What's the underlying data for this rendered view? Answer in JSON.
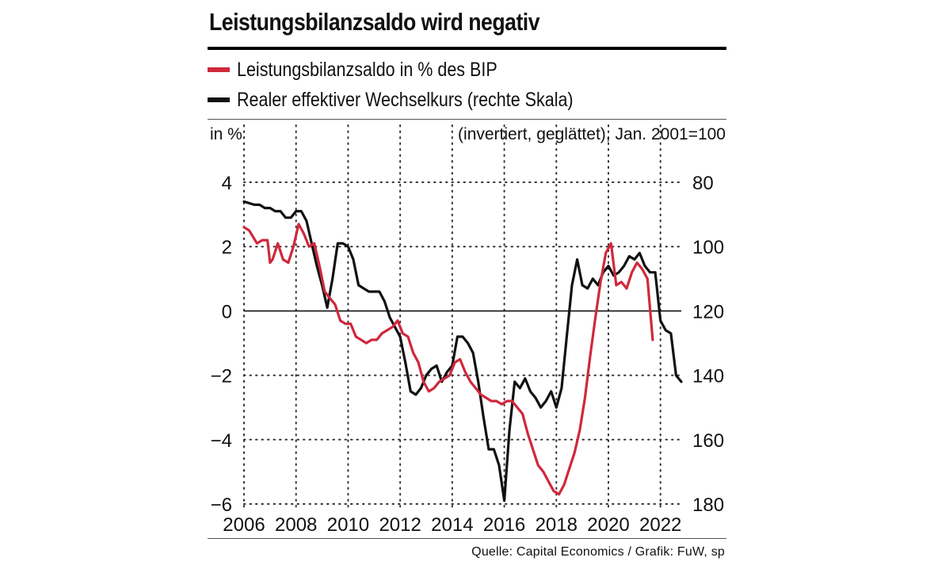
{
  "title": "Leistungsbilanzsaldo wird negativ",
  "legend": [
    {
      "label": "Leistungsbilanzsaldo in % des BIP",
      "color": "#d0283c"
    },
    {
      "label": "Realer effektiver Wechselkurs (rechte Skala)",
      "color": "#111111"
    }
  ],
  "source": "Quelle: Capital Economics / Grafik: FuW, sp",
  "chart_data": {
    "type": "line",
    "left_axis": {
      "unit_label": "in %",
      "ylim": [
        -6,
        4
      ],
      "ticks": [
        "4",
        "2",
        "0",
        "−2",
        "−4",
        "−6"
      ]
    },
    "right_axis": {
      "unit_label": "(invertiert, geglättet), Jan. 2001=100",
      "ylim": [
        180,
        80
      ],
      "inverted": true,
      "ticks": [
        "80",
        "100",
        "120",
        "140",
        "160",
        "180"
      ]
    },
    "x_axis": {
      "xlim": [
        2006,
        2022.8
      ],
      "ticks": [
        "2006",
        "2008",
        "2010",
        "2012",
        "2014",
        "2016",
        "2018",
        "2020",
        "2022"
      ]
    },
    "grid": true,
    "series": [
      {
        "name": "Leistungsbilanzsaldo in % des BIP",
        "axis": "left",
        "color": "#d0283c",
        "x": [
          2006.0,
          2006.2,
          2006.5,
          2006.7,
          2006.9,
          2007.0,
          2007.1,
          2007.3,
          2007.5,
          2007.7,
          2007.9,
          2008.1,
          2008.3,
          2008.5,
          2008.7,
          2008.9,
          2009.1,
          2009.3,
          2009.5,
          2009.7,
          2009.9,
          2010.1,
          2010.3,
          2010.5,
          2010.7,
          2010.9,
          2011.1,
          2011.3,
          2011.5,
          2011.7,
          2011.9,
          2012.1,
          2012.3,
          2012.5,
          2012.7,
          2012.9,
          2013.1,
          2013.3,
          2013.5,
          2013.7,
          2013.9,
          2014.1,
          2014.3,
          2014.5,
          2014.7,
          2014.9,
          2015.1,
          2015.3,
          2015.5,
          2015.7,
          2015.9,
          2016.1,
          2016.3,
          2016.5,
          2016.7,
          2016.9,
          2017.1,
          2017.3,
          2017.5,
          2017.7,
          2017.9,
          2018.1,
          2018.3,
          2018.5,
          2018.7,
          2018.9,
          2019.1,
          2019.3,
          2019.5,
          2019.7,
          2019.9,
          2020.1,
          2020.3,
          2020.5,
          2020.7,
          2020.9,
          2021.1,
          2021.3,
          2021.5,
          2021.7
        ],
        "values": [
          2.6,
          2.5,
          2.1,
          2.2,
          2.2,
          1.5,
          1.6,
          2.1,
          1.6,
          1.5,
          2.0,
          2.7,
          2.4,
          2.0,
          2.1,
          1.4,
          0.6,
          0.4,
          0.2,
          -0.3,
          -0.4,
          -0.4,
          -0.8,
          -0.9,
          -1.0,
          -0.9,
          -0.9,
          -0.7,
          -0.6,
          -0.5,
          -0.3,
          -0.7,
          -0.8,
          -1.3,
          -1.6,
          -2.2,
          -2.5,
          -2.4,
          -2.2,
          -2.1,
          -2.0,
          -1.6,
          -1.5,
          -1.9,
          -2.2,
          -2.4,
          -2.6,
          -2.7,
          -2.8,
          -2.8,
          -2.9,
          -2.8,
          -2.8,
          -3.0,
          -3.2,
          -3.8,
          -4.3,
          -4.8,
          -5.0,
          -5.3,
          -5.6,
          -5.7,
          -5.4,
          -4.9,
          -4.4,
          -3.7,
          -2.7,
          -1.4,
          -0.2,
          0.9,
          1.8,
          2.1,
          0.8,
          0.9,
          0.7,
          1.2,
          1.5,
          1.3,
          1.0,
          -0.9
        ],
        "note": "values approximate"
      },
      {
        "name": "Realer effektiver Wechselkurs (rechte Skala)",
        "axis": "right",
        "color": "#111111",
        "x": [
          2006.0,
          2006.2,
          2006.4,
          2006.6,
          2006.8,
          2007.0,
          2007.2,
          2007.4,
          2007.6,
          2007.8,
          2008.0,
          2008.2,
          2008.4,
          2008.6,
          2008.8,
          2009.0,
          2009.2,
          2009.4,
          2009.6,
          2009.8,
          2010.0,
          2010.2,
          2010.4,
          2010.6,
          2010.8,
          2011.0,
          2011.2,
          2011.4,
          2011.6,
          2011.8,
          2012.0,
          2012.2,
          2012.4,
          2012.6,
          2012.8,
          2013.0,
          2013.2,
          2013.4,
          2013.6,
          2013.8,
          2014.0,
          2014.2,
          2014.4,
          2014.6,
          2014.8,
          2015.0,
          2015.2,
          2015.4,
          2015.6,
          2015.8,
          2016.0,
          2016.2,
          2016.4,
          2016.6,
          2016.8,
          2017.0,
          2017.2,
          2017.4,
          2017.6,
          2017.8,
          2018.0,
          2018.2,
          2018.4,
          2018.6,
          2018.8,
          2019.0,
          2019.2,
          2019.4,
          2019.6,
          2019.8,
          2020.0,
          2020.2,
          2020.4,
          2020.6,
          2020.8,
          2021.0,
          2021.2,
          2021.4,
          2021.6,
          2021.8,
          2022.0,
          2022.2,
          2022.4,
          2022.6,
          2022.8
        ],
        "values": [
          86,
          86.5,
          87,
          87,
          88,
          88,
          89,
          89,
          91,
          91,
          89,
          89,
          92,
          99,
          106,
          112,
          119,
          110,
          99,
          99,
          100,
          104,
          112,
          113,
          114,
          114,
          114,
          117,
          122,
          125,
          128,
          136,
          145,
          146,
          144,
          140,
          138,
          137,
          142,
          139,
          137,
          128,
          128,
          130,
          133,
          142,
          153,
          163,
          163,
          168,
          179,
          157,
          142,
          144,
          141,
          145,
          147,
          150,
          148,
          145,
          150,
          144,
          128,
          112,
          104,
          112,
          113,
          110,
          112,
          108,
          106,
          109,
          108,
          106,
          103,
          104,
          102,
          106,
          108,
          108,
          123,
          126,
          127,
          140,
          142
        ],
        "note": "values approximate"
      }
    ]
  }
}
